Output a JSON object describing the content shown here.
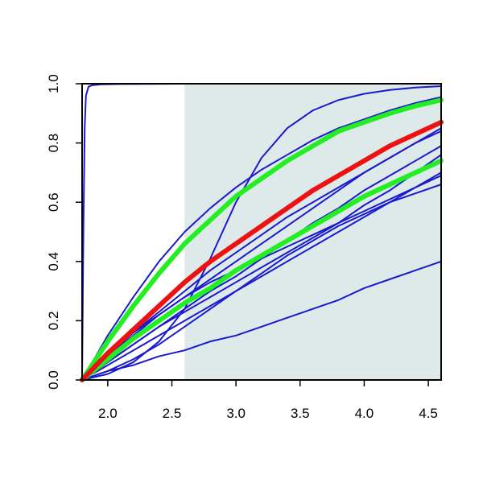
{
  "chart_data": {
    "type": "line",
    "title": "",
    "xlabel": "",
    "ylabel": "",
    "xlim": [
      1.8,
      4.6
    ],
    "ylim": [
      0.0,
      1.0
    ],
    "x_ticks": [
      2.0,
      2.5,
      3.0,
      3.5,
      4.0,
      4.5
    ],
    "x_tick_labels": [
      "2.0",
      "2.5",
      "3.0",
      "3.5",
      "4.0",
      "4.5"
    ],
    "y_ticks": [
      0.0,
      0.2,
      0.4,
      0.6,
      0.8,
      1.0
    ],
    "y_tick_labels": [
      "0.0",
      "0.2",
      "0.4",
      "0.6",
      "0.8",
      "1.0"
    ],
    "grid": false,
    "legend": "none",
    "shaded_region": {
      "x_from": 2.6,
      "x_to": 4.6,
      "color": "#deeaea"
    },
    "colors": {
      "thin_series": "#1a1acd",
      "green_series": "#22ee22",
      "red_series": "#ee1111"
    },
    "series": [
      {
        "color": "blue",
        "width": "thin",
        "x": [
          1.8,
          1.81,
          1.82,
          1.83,
          1.85,
          1.88,
          1.95,
          2.1,
          2.6,
          3.5,
          4.6
        ],
        "y": [
          0.0,
          0.5,
          0.85,
          0.96,
          0.99,
          0.995,
          0.998,
          0.999,
          1.0,
          1.0,
          1.0
        ]
      },
      {
        "color": "blue",
        "width": "thin",
        "x": [
          1.8,
          2.0,
          2.2,
          2.4,
          2.6,
          2.8,
          3.0,
          3.2,
          3.4,
          3.6,
          3.8,
          4.0,
          4.2,
          4.4,
          4.6
        ],
        "y": [
          0.0,
          0.02,
          0.06,
          0.13,
          0.24,
          0.41,
          0.6,
          0.75,
          0.85,
          0.91,
          0.945,
          0.966,
          0.979,
          0.987,
          0.992
        ]
      },
      {
        "color": "blue",
        "width": "thin",
        "x": [
          1.8,
          2.0,
          2.2,
          2.4,
          2.6,
          2.8,
          3.0,
          3.2,
          3.4,
          3.6,
          3.8,
          4.0,
          4.2,
          4.4,
          4.6
        ],
        "y": [
          0.0,
          0.15,
          0.28,
          0.4,
          0.5,
          0.58,
          0.65,
          0.71,
          0.76,
          0.81,
          0.85,
          0.88,
          0.91,
          0.935,
          0.955
        ]
      },
      {
        "color": "blue",
        "width": "thin",
        "x": [
          1.8,
          2.0,
          2.2,
          2.4,
          2.6,
          2.8,
          3.0,
          3.2,
          3.4,
          3.6,
          3.8,
          4.0,
          4.2,
          4.4,
          4.6
        ],
        "y": [
          0.0,
          0.09,
          0.16,
          0.22,
          0.28,
          0.33,
          0.37,
          0.41,
          0.45,
          0.49,
          0.53,
          0.57,
          0.61,
          0.65,
          0.69
        ]
      },
      {
        "color": "blue",
        "width": "thin",
        "x": [
          1.8,
          2.0,
          2.2,
          2.4,
          2.6,
          2.8,
          3.0,
          3.2,
          3.4,
          3.6,
          3.8,
          4.0,
          4.2,
          4.4,
          4.6
        ],
        "y": [
          0.0,
          0.06,
          0.12,
          0.18,
          0.23,
          0.28,
          0.33,
          0.38,
          0.43,
          0.48,
          0.53,
          0.59,
          0.64,
          0.7,
          0.76
        ]
      },
      {
        "color": "blue",
        "width": "thin",
        "x": [
          1.8,
          2.0,
          2.2,
          2.4,
          2.6,
          2.8,
          3.0,
          3.2,
          3.4,
          3.6,
          3.8,
          4.0,
          4.2,
          4.4,
          4.6
        ],
        "y": [
          0.0,
          0.05,
          0.1,
          0.15,
          0.2,
          0.25,
          0.3,
          0.35,
          0.4,
          0.45,
          0.5,
          0.55,
          0.6,
          0.65,
          0.7
        ]
      },
      {
        "color": "blue",
        "width": "thin",
        "x": [
          1.8,
          2.0,
          2.2,
          2.4,
          2.6,
          2.8,
          3.0,
          3.2,
          3.4,
          3.6,
          3.8,
          4.0,
          4.2,
          4.4,
          4.6
        ],
        "y": [
          0.0,
          0.06,
          0.12,
          0.18,
          0.24,
          0.3,
          0.35,
          0.41,
          0.47,
          0.53,
          0.58,
          0.64,
          0.69,
          0.74,
          0.79
        ]
      },
      {
        "color": "blue",
        "width": "thin",
        "x": [
          1.8,
          2.0,
          2.2,
          2.4,
          2.6,
          2.8,
          3.0,
          3.2,
          3.4,
          3.6,
          3.8,
          4.0,
          4.2,
          4.4,
          4.6
        ],
        "y": [
          0.0,
          0.08,
          0.15,
          0.22,
          0.28,
          0.34,
          0.4,
          0.46,
          0.52,
          0.58,
          0.64,
          0.7,
          0.75,
          0.8,
          0.84
        ]
      },
      {
        "color": "blue",
        "width": "thin",
        "x": [
          1.8,
          2.0,
          2.2,
          2.4,
          2.6,
          2.8,
          3.0,
          3.2,
          3.4,
          3.6,
          3.8,
          4.0,
          4.2,
          4.4,
          4.6
        ],
        "y": [
          0.0,
          0.08,
          0.16,
          0.23,
          0.3,
          0.37,
          0.43,
          0.49,
          0.55,
          0.6,
          0.65,
          0.7,
          0.75,
          0.8,
          0.85
        ]
      },
      {
        "color": "blue",
        "width": "thin",
        "x": [
          1.8,
          2.0,
          2.2,
          2.4,
          2.6,
          2.8,
          3.0,
          3.2,
          3.4,
          3.6,
          3.8,
          4.0,
          4.2,
          4.4,
          4.6
        ],
        "y": [
          0.0,
          0.03,
          0.05,
          0.08,
          0.1,
          0.13,
          0.15,
          0.18,
          0.21,
          0.24,
          0.27,
          0.31,
          0.34,
          0.37,
          0.4
        ]
      },
      {
        "color": "blue",
        "width": "thin",
        "x": [
          1.8,
          2.0,
          2.2,
          2.4,
          2.6,
          2.8,
          3.0,
          3.2,
          3.4,
          3.6,
          3.8,
          4.0,
          4.2,
          4.4,
          4.6
        ],
        "y": [
          0.0,
          0.03,
          0.07,
          0.12,
          0.18,
          0.24,
          0.3,
          0.36,
          0.42,
          0.47,
          0.52,
          0.56,
          0.6,
          0.63,
          0.66
        ]
      },
      {
        "color": "green",
        "width": "thick",
        "x": [
          1.8,
          2.0,
          2.2,
          2.4,
          2.6,
          2.8,
          3.0,
          3.2,
          3.4,
          3.6,
          3.8,
          4.0,
          4.2,
          4.4,
          4.6
        ],
        "y": [
          0.0,
          0.13,
          0.25,
          0.36,
          0.46,
          0.54,
          0.62,
          0.68,
          0.74,
          0.79,
          0.84,
          0.87,
          0.9,
          0.925,
          0.945
        ]
      },
      {
        "color": "green",
        "width": "thick",
        "x": [
          1.8,
          2.0,
          2.2,
          2.4,
          2.6,
          2.8,
          3.0,
          3.2,
          3.4,
          3.6,
          3.8,
          4.0,
          4.2,
          4.4,
          4.6
        ],
        "y": [
          0.0,
          0.07,
          0.14,
          0.2,
          0.26,
          0.31,
          0.37,
          0.42,
          0.47,
          0.52,
          0.57,
          0.62,
          0.66,
          0.7,
          0.74
        ]
      },
      {
        "color": "red",
        "width": "thick",
        "x": [
          1.8,
          2.0,
          2.2,
          2.4,
          2.6,
          2.8,
          3.0,
          3.2,
          3.4,
          3.6,
          3.8,
          4.0,
          4.2,
          4.4,
          4.6
        ],
        "y": [
          0.0,
          0.09,
          0.17,
          0.25,
          0.33,
          0.4,
          0.46,
          0.52,
          0.58,
          0.64,
          0.69,
          0.74,
          0.79,
          0.83,
          0.87
        ]
      }
    ]
  }
}
